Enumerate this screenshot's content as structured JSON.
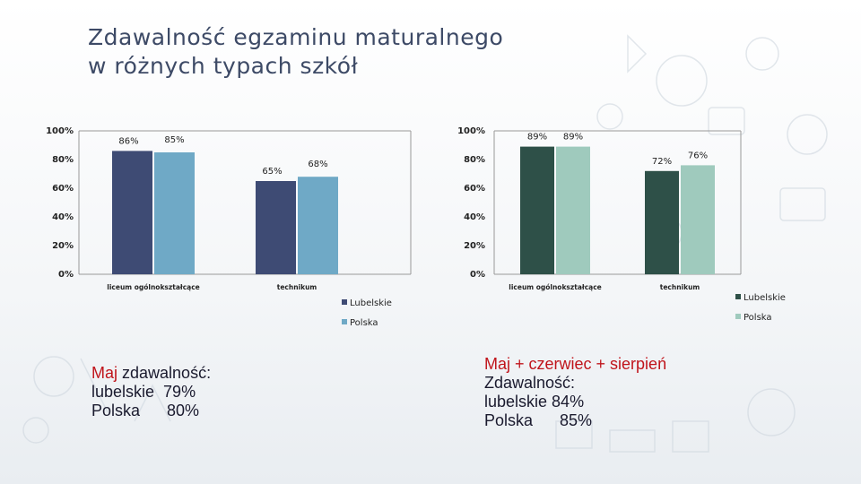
{
  "title_line1": "Zdawalność egzaminu maturalnego",
  "title_line2": "w różnych typach szkół",
  "chart_data": [
    {
      "type": "bar",
      "categories": [
        "liceum ogólnokształcące",
        "technikum"
      ],
      "series": [
        {
          "name": "Lubelskie",
          "values": [
            86,
            65
          ],
          "labels": [
            "86%",
            "65%"
          ]
        },
        {
          "name": "Polska",
          "values": [
            85,
            68
          ],
          "labels": [
            "85%",
            "68%"
          ]
        }
      ],
      "ylim": [
        0,
        100
      ],
      "yticks": [
        "0%",
        "20%",
        "40%",
        "60%",
        "80%",
        "100%"
      ],
      "colors": [
        "#3e4b74",
        "#6fa9c6"
      ],
      "legend": "right-bottom"
    },
    {
      "type": "bar",
      "categories": [
        "liceum ogólnokształcące",
        "technikum"
      ],
      "series": [
        {
          "name": "Lubelskie",
          "values": [
            89,
            72
          ],
          "labels": [
            "89%",
            "72%"
          ]
        },
        {
          "name": "Polska",
          "values": [
            89,
            76
          ],
          "labels": [
            "89%",
            "76%"
          ]
        }
      ],
      "ylim": [
        0,
        100
      ],
      "yticks": [
        "0%",
        "20%",
        "40%",
        "60%",
        "80%",
        "100%"
      ],
      "colors": [
        "#2e5048",
        "#9fcabd"
      ],
      "legend": "right-bottom"
    }
  ],
  "note_left": {
    "highlight": "Maj",
    "line1_rest": " zdawalność:",
    "line2": "lubelskie  79%",
    "line3": "Polska      80%"
  },
  "note_right": {
    "highlight": "Maj + czerwiec + sierpień",
    "line2": "Zdawalność:",
    "line3": "lubelskie 84%",
    "line4": "Polska      85%"
  }
}
